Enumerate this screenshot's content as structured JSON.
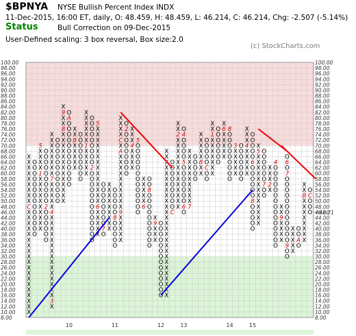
{
  "header": {
    "symbol": "$BPNYA",
    "name": "NYSE Bullish Percent Index  INDX",
    "quote": "11-Dec-2015, 16:00 ET, daily, O: 48.459, H: 48.459, L: 46.214, C: 46.214, Chg: -2.507 (-5.14%)",
    "status_label": "Status",
    "status_text": "Bull Correction on 09-Dec-2015",
    "scaling": "User-Defined scaling: 3 box reversal, Box size:2.0",
    "copyright": "(c) StockCharts.com"
  },
  "colors": {
    "bullish_zone": "#f8dcdc",
    "bearish_zone": "#dcf5d8",
    "x_mark": "#000000",
    "o_mark": "#000000",
    "month_marker": "#cc0000",
    "support_line": "#0000dd",
    "resistance_line": "#ee0000",
    "price_label": "#cc0000"
  },
  "chart_data": {
    "type": "point-and-figure",
    "box_size": 2,
    "reversal": 3,
    "ylim": [
      8,
      100
    ],
    "y_tick_step": 2,
    "bullish_zone_from": 70,
    "bearish_zone_to": 30,
    "last_value_label": "<46.21",
    "x_labels": [
      {
        "label": "10",
        "column": 7
      },
      {
        "label": "11",
        "column": 15
      },
      {
        "label": "12",
        "column": 23
      },
      {
        "label": "13",
        "column": 27
      },
      {
        "label": "14",
        "column": 35
      },
      {
        "label": "15",
        "column": 39
      }
    ],
    "columns": [
      {
        "type": "X",
        "low": 10,
        "high": 66,
        "marks": [
          {
            "at": 48,
            "label": "C"
          }
        ]
      },
      {
        "type": "O",
        "low": 38,
        "high": 64
      },
      {
        "type": "X",
        "low": 40,
        "high": 70,
        "marks": [
          {
            "at": 60,
            "label": "1"
          },
          {
            "at": 70,
            "label": "5"
          }
        ]
      },
      {
        "type": "O",
        "low": 36,
        "high": 68,
        "marks": [
          {
            "at": 48,
            "label": "2"
          }
        ]
      },
      {
        "type": "X",
        "low": 12,
        "high": 74,
        "marks": [
          {
            "at": 14,
            "label": "3"
          },
          {
            "at": 46,
            "label": "4"
          },
          {
            "at": 58,
            "label": "7"
          }
        ]
      },
      {
        "type": "O",
        "low": 50,
        "high": 72
      },
      {
        "type": "X",
        "low": 50,
        "high": 84,
        "marks": [
          {
            "at": 76,
            "label": "8"
          },
          {
            "at": 82,
            "label": "9"
          }
        ]
      },
      {
        "type": "O",
        "low": 56,
        "high": 82,
        "marks": [
          {
            "at": 80,
            "label": "A"
          }
        ]
      },
      {
        "type": "X",
        "low": 62,
        "high": 76,
        "marks": [
          {
            "at": 72,
            "label": "B"
          }
        ]
      },
      {
        "type": "O",
        "low": 58,
        "high": 74
      },
      {
        "type": "X",
        "low": 60,
        "high": 82,
        "marks": [
          {
            "at": 70,
            "label": "1"
          }
        ]
      },
      {
        "type": "O",
        "low": 36,
        "high": 80,
        "marks": [
          {
            "at": 62,
            "label": "2"
          }
        ]
      },
      {
        "type": "X",
        "low": 38,
        "high": 78,
        "marks": [
          {
            "at": 48,
            "label": "6"
          },
          {
            "at": 78,
            "label": "5"
          }
        ]
      },
      {
        "type": "O",
        "low": 38,
        "high": 56,
        "marks": [
          {
            "at": 40,
            "label": "7"
          }
        ]
      },
      {
        "type": "X",
        "low": 40,
        "high": 56
      },
      {
        "type": "O",
        "low": 34,
        "high": 54,
        "marks": [
          {
            "at": 44,
            "label": "8"
          }
        ]
      },
      {
        "type": "X",
        "low": 36,
        "high": 80,
        "marks": [
          {
            "at": 46,
            "label": "9"
          },
          {
            "at": 68,
            "label": "A"
          },
          {
            "at": 72,
            "label": "C"
          }
        ]
      },
      {
        "type": "O",
        "low": 60,
        "high": 78,
        "marks": [
          {
            "at": 76,
            "label": "2"
          }
        ]
      },
      {
        "type": "X",
        "low": 62,
        "high": 76,
        "marks": [
          {
            "at": 70,
            "label": "4"
          }
        ]
      },
      {
        "type": "O",
        "low": 46,
        "high": 72,
        "marks": [
          {
            "at": 72,
            "label": "5"
          }
        ]
      },
      {
        "type": "X",
        "low": 48,
        "high": 58,
        "marks": [
          {
            "at": 48,
            "label": "6"
          }
        ]
      },
      {
        "type": "O",
        "low": 34,
        "high": 58,
        "marks": [
          {
            "at": 54,
            "label": "8"
          }
        ]
      },
      {
        "type": "X",
        "low": 36,
        "high": 44,
        "marks": [
          {
            "at": 42,
            "label": "9"
          }
        ]
      },
      {
        "type": "O",
        "low": 16,
        "high": 42
      },
      {
        "type": "X",
        "low": 16,
        "high": 68
      },
      {
        "type": "O",
        "low": 46,
        "high": 64,
        "marks": [
          {
            "at": 46,
            "label": "C"
          }
        ]
      },
      {
        "type": "X",
        "low": 48,
        "high": 78,
        "marks": [
          {
            "at": 74,
            "label": "2"
          }
        ]
      },
      {
        "type": "O",
        "low": 46,
        "high": 76,
        "marks": [
          {
            "at": 74,
            "label": "4"
          },
          {
            "at": 64,
            "label": "5"
          },
          {
            "at": 48,
            "label": "6"
          }
        ]
      },
      {
        "type": "X",
        "low": 48,
        "high": 68,
        "marks": [
          {
            "at": 48,
            "label": "7"
          }
        ]
      },
      {
        "type": "O",
        "low": 58,
        "high": 66
      },
      {
        "type": "X",
        "low": 60,
        "high": 74,
        "marks": [
          {
            "at": 64,
            "label": "B"
          }
        ]
      },
      {
        "type": "O",
        "low": 58,
        "high": 72,
        "marks": [
          {
            "at": 62,
            "label": "C"
          }
        ]
      },
      {
        "type": "X",
        "low": 60,
        "high": 78,
        "marks": [
          {
            "at": 74,
            "label": "1"
          }
        ]
      },
      {
        "type": "O",
        "low": 64,
        "high": 76
      },
      {
        "type": "X",
        "low": 66,
        "high": 78,
        "marks": [
          {
            "at": 76,
            "label": "6"
          }
        ]
      },
      {
        "type": "O",
        "low": 58,
        "high": 76,
        "marks": [
          {
            "at": 76,
            "label": "8"
          }
        ]
      },
      {
        "type": "X",
        "low": 60,
        "high": 70,
        "marks": [
          {
            "at": 70,
            "label": "3"
          }
        ]
      },
      {
        "type": "O",
        "low": 58,
        "high": 70
      },
      {
        "type": "X",
        "low": 60,
        "high": 76,
        "marks": [
          {
            "at": 70,
            "label": "4"
          }
        ]
      },
      {
        "type": "O",
        "low": 40,
        "high": 74,
        "marks": [
          {
            "at": 64,
            "label": "6"
          },
          {
            "at": 50,
            "label": "8"
          }
        ]
      },
      {
        "type": "X",
        "low": 42,
        "high": 70,
        "marks": [
          {
            "at": 68,
            "label": "5"
          }
        ]
      },
      {
        "type": "O",
        "low": 52,
        "high": 68,
        "marks": [
          {
            "at": 56,
            "label": "7"
          }
        ]
      },
      {
        "type": "X",
        "low": 54,
        "high": 62,
        "marks": [
          {
            "at": 56,
            "label": "2"
          }
        ]
      },
      {
        "type": "O",
        "low": 34,
        "high": 64,
        "marks": [
          {
            "at": 64,
            "label": "4"
          }
        ]
      },
      {
        "type": "X",
        "low": 36,
        "high": 48,
        "marks": [
          {
            "at": 44,
            "label": "9"
          }
        ]
      },
      {
        "type": "O",
        "low": 30,
        "high": 66,
        "marks": [
          {
            "at": 64,
            "label": "6"
          },
          {
            "at": 60,
            "label": "7"
          },
          {
            "at": 34,
            "label": "9"
          }
        ]
      },
      {
        "type": "X",
        "low": 32,
        "high": 40
      },
      {
        "type": "O",
        "low": 34,
        "high": 40,
        "marks": [
          {
            "at": 36,
            "label": "A"
          }
        ]
      },
      {
        "type": "X",
        "low": 36,
        "high": 56,
        "marks": [
          {
            "at": 52,
            "label": "B"
          }
        ]
      },
      {
        "type": "O",
        "low": 46,
        "high": 54,
        "marks": [
          {
            "at": 52,
            "label": "C"
          }
        ]
      }
    ],
    "trendlines": [
      {
        "kind": "support",
        "from": {
          "column": 0,
          "value": 8
        },
        "to": {
          "column": 14,
          "value": 44
        }
      },
      {
        "kind": "support",
        "from": {
          "column": 23,
          "value": 16
        },
        "to": {
          "column": 39,
          "value": 54
        }
      },
      {
        "kind": "resistance",
        "from": {
          "column": 16,
          "value": 82
        },
        "to": {
          "column": 25,
          "value": 62
        }
      },
      {
        "kind": "resistance",
        "from": {
          "column": 40,
          "value": 76
        },
        "to": {
          "column": 45,
          "value": 68
        }
      },
      {
        "kind": "resistance",
        "from": {
          "column": 44,
          "value": 70
        },
        "to": {
          "column": 50,
          "value": 58
        }
      }
    ]
  }
}
